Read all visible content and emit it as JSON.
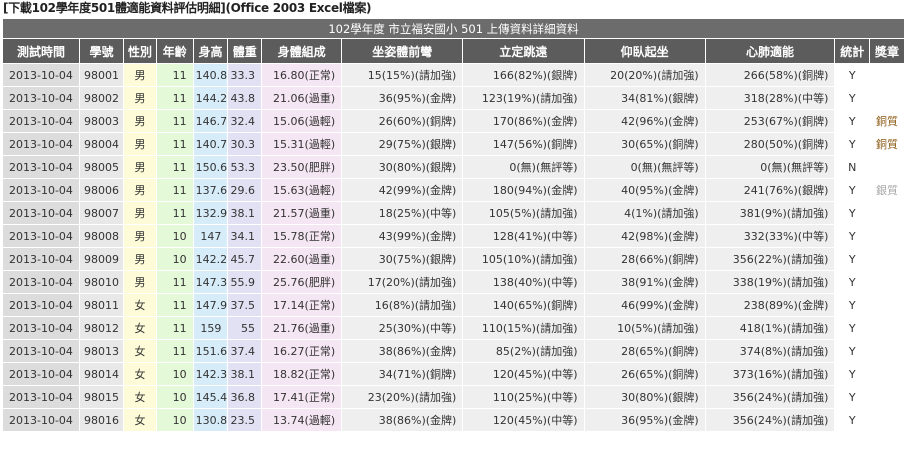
{
  "header": {
    "download_label": "[下載102學年度501體適能資料評估明細](Office 2003 Excel檔案)"
  },
  "table": {
    "caption": "102學年度 市立福安國小 501 上傳資料詳細資料",
    "columns": [
      "測試時間",
      "學號",
      "性別",
      "年齡",
      "身高",
      "體重",
      "身體組成",
      "坐姿體前彎",
      "立定跳遠",
      "仰臥起坐",
      "心肺適能",
      "統計",
      "獎章"
    ],
    "rows": [
      [
        "2013-10-04",
        "98001",
        "男",
        "11",
        "140.8",
        "33.3",
        "16.80(正常)",
        "15(15%)(請加強)",
        "166(82%)(銀牌)",
        "20(20%)(請加強)",
        "266(58%)(銅牌)",
        "Y",
        ""
      ],
      [
        "2013-10-04",
        "98002",
        "男",
        "11",
        "144.2",
        "43.8",
        "21.06(過重)",
        "36(95%)(金牌)",
        "123(19%)(請加強)",
        "34(81%)(銀牌)",
        "318(28%)(中等)",
        "Y",
        ""
      ],
      [
        "2013-10-04",
        "98003",
        "男",
        "11",
        "146.7",
        "32.4",
        "15.06(過輕)",
        "26(60%)(銅牌)",
        "170(86%)(金牌)",
        "42(96%)(金牌)",
        "253(67%)(銅牌)",
        "Y",
        "銅質"
      ],
      [
        "2013-10-04",
        "98004",
        "男",
        "11",
        "140.7",
        "30.3",
        "15.31(過輕)",
        "29(75%)(銀牌)",
        "147(56%)(銅牌)",
        "30(65%)(銅牌)",
        "280(50%)(銅牌)",
        "Y",
        "銅質"
      ],
      [
        "2013-10-04",
        "98005",
        "男",
        "11",
        "150.6",
        "53.3",
        "23.50(肥胖)",
        "30(80%)(銀牌)",
        "0(無)(無評等)",
        "0(無)(無評等)",
        "0(無)(無評等)",
        "N",
        ""
      ],
      [
        "2013-10-04",
        "98006",
        "男",
        "11",
        "137.6",
        "29.6",
        "15.63(過輕)",
        "42(99%)(金牌)",
        "180(94%)(金牌)",
        "40(95%)(金牌)",
        "241(76%)(銀牌)",
        "Y",
        "銀質"
      ],
      [
        "2013-10-04",
        "98007",
        "男",
        "11",
        "132.9",
        "38.1",
        "21.57(過重)",
        "18(25%)(中等)",
        "105(5%)(請加強)",
        "4(1%)(請加強)",
        "381(9%)(請加強)",
        "Y",
        ""
      ],
      [
        "2013-10-04",
        "98008",
        "男",
        "10",
        "147",
        "34.1",
        "15.78(正常)",
        "43(99%)(金牌)",
        "128(41%)(中等)",
        "42(98%)(金牌)",
        "332(33%)(中等)",
        "Y",
        ""
      ],
      [
        "2013-10-04",
        "98009",
        "男",
        "10",
        "142.2",
        "45.7",
        "22.60(過重)",
        "30(75%)(銀牌)",
        "105(10%)(請加強)",
        "28(66%)(銅牌)",
        "356(22%)(請加強)",
        "Y",
        ""
      ],
      [
        "2013-10-04",
        "98010",
        "男",
        "11",
        "147.3",
        "55.9",
        "25.76(肥胖)",
        "17(20%)(請加強)",
        "138(40%)(中等)",
        "38(91%)(金牌)",
        "338(19%)(請加強)",
        "Y",
        ""
      ],
      [
        "2013-10-04",
        "98011",
        "女",
        "11",
        "147.9",
        "37.5",
        "17.14(正常)",
        "16(8%)(請加強)",
        "140(65%)(銅牌)",
        "46(99%)(金牌)",
        "238(89%)(金牌)",
        "Y",
        ""
      ],
      [
        "2013-10-04",
        "98012",
        "女",
        "11",
        "159",
        "55",
        "21.76(過重)",
        "25(30%)(中等)",
        "110(15%)(請加強)",
        "10(5%)(請加強)",
        "418(1%)(請加強)",
        "Y",
        ""
      ],
      [
        "2013-10-04",
        "98013",
        "女",
        "11",
        "151.6",
        "37.4",
        "16.27(正常)",
        "38(86%)(金牌)",
        "85(2%)(請加強)",
        "28(65%)(銅牌)",
        "374(8%)(請加強)",
        "Y",
        ""
      ],
      [
        "2013-10-04",
        "98014",
        "女",
        "10",
        "142.3",
        "38.1",
        "18.82(正常)",
        "34(71%)(銅牌)",
        "120(45%)(中等)",
        "26(65%)(銅牌)",
        "373(16%)(請加強)",
        "Y",
        ""
      ],
      [
        "2013-10-04",
        "98015",
        "女",
        "10",
        "145.4",
        "36.8",
        "17.41(正常)",
        "23(20%)(請加強)",
        "110(25%)(中等)",
        "30(80%)(銀牌)",
        "356(24%)(請加強)",
        "Y",
        ""
      ],
      [
        "2013-10-04",
        "98016",
        "女",
        "10",
        "130.8",
        "23.5",
        "13.74(過輕)",
        "38(86%)(金牌)",
        "120(45%)(中等)",
        "36(95%)(金牌)",
        "356(24%)(請加強)",
        "Y",
        ""
      ]
    ]
  }
}
